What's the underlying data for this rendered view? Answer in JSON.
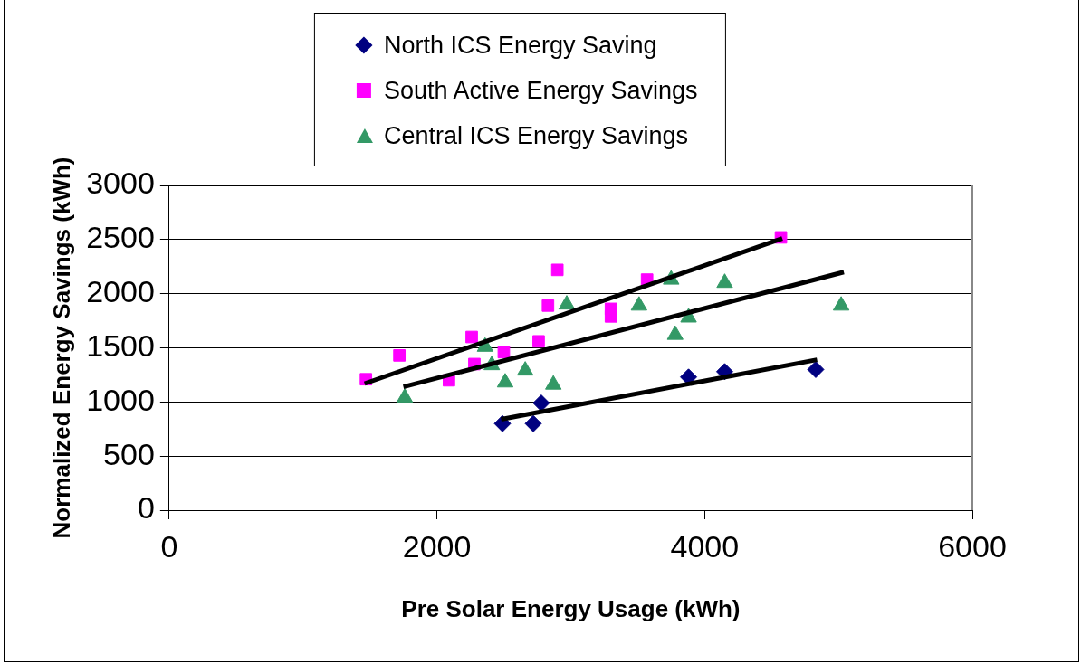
{
  "chart_data": {
    "type": "scatter",
    "xlabel": "Pre Solar Energy Usage (kWh)",
    "ylabel": "Normalized Energy Savings (kWh)",
    "xlim": [
      0,
      6000
    ],
    "xticks": [
      0,
      2000,
      4000,
      6000
    ],
    "ylim": [
      0,
      3000
    ],
    "yticks": [
      0,
      500,
      1000,
      1500,
      2000,
      2500,
      3000
    ],
    "grid": "y",
    "legend": "top",
    "series": [
      {
        "name": "North ICS Energy Saving",
        "type": "scatter",
        "marker": "diamond",
        "color": "#000080",
        "x": [
          2490,
          2720,
          2780,
          3880,
          4150,
          4830
        ],
        "values": [
          800,
          800,
          990,
          1230,
          1280,
          1300
        ]
      },
      {
        "name": "South Active Energy Savings",
        "type": "scatter",
        "marker": "square",
        "color": "#ff00ff",
        "x": [
          1470,
          1720,
          2090,
          2260,
          2280,
          2500,
          2760,
          2830,
          2900,
          3300,
          3300,
          3570,
          4570
        ],
        "values": [
          1210,
          1430,
          1200,
          1600,
          1350,
          1460,
          1560,
          1890,
          2220,
          1790,
          1860,
          2130,
          2520
        ]
      },
      {
        "name": "Central ICS Energy Savings",
        "type": "scatter",
        "marker": "triangle",
        "color": "#339966",
        "x": [
          1760,
          2360,
          2410,
          2510,
          2660,
          2870,
          2970,
          3510,
          3750,
          3780,
          3880,
          4150,
          5020
        ],
        "values": [
          1040,
          1510,
          1340,
          1180,
          1290,
          1160,
          1900,
          1890,
          2130,
          1620,
          1780,
          2100,
          1890
        ]
      },
      {
        "type": "line",
        "marker": "none",
        "color": "#000000",
        "x": [
          2480,
          4840
        ],
        "values": [
          840,
          1390
        ]
      },
      {
        "type": "line",
        "marker": "none",
        "color": "#000000",
        "x": [
          1460,
          4580
        ],
        "values": [
          1170,
          2510
        ]
      },
      {
        "type": "line",
        "marker": "none",
        "color": "#000000",
        "x": [
          1750,
          5040
        ],
        "values": [
          1140,
          2200
        ]
      }
    ]
  }
}
